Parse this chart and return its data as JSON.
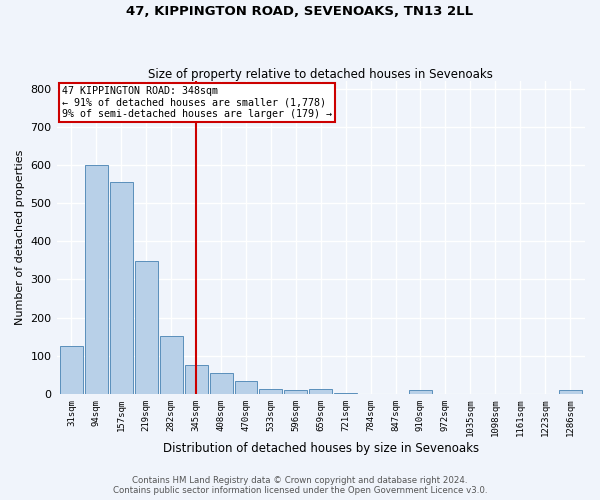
{
  "title": "47, KIPPINGTON ROAD, SEVENOAKS, TN13 2LL",
  "subtitle": "Size of property relative to detached houses in Sevenoaks",
  "xlabel": "Distribution of detached houses by size in Sevenoaks",
  "ylabel": "Number of detached properties",
  "categories": [
    "31sqm",
    "94sqm",
    "157sqm",
    "219sqm",
    "282sqm",
    "345sqm",
    "408sqm",
    "470sqm",
    "533sqm",
    "596sqm",
    "659sqm",
    "721sqm",
    "784sqm",
    "847sqm",
    "910sqm",
    "972sqm",
    "1035sqm",
    "1098sqm",
    "1161sqm",
    "1223sqm",
    "1286sqm"
  ],
  "values": [
    125,
    600,
    555,
    348,
    152,
    75,
    54,
    35,
    14,
    10,
    14,
    2,
    0,
    0,
    10,
    0,
    0,
    0,
    0,
    0,
    10
  ],
  "bar_color": "#b8d0e8",
  "bar_edge_color": "#5a8fbb",
  "property_line_label": "47 KIPPINGTON ROAD: 348sqm",
  "annotation_line1": "← 91% of detached houses are smaller (1,778)",
  "annotation_line2": "9% of semi-detached houses are larger (179) →",
  "annotation_box_color": "#cc0000",
  "annotation_bg": "#ffffff",
  "ylim": [
    0,
    820
  ],
  "yticks": [
    0,
    100,
    200,
    300,
    400,
    500,
    600,
    700,
    800
  ],
  "footer_line1": "Contains HM Land Registry data © Crown copyright and database right 2024.",
  "footer_line2": "Contains public sector information licensed under the Open Government Licence v3.0.",
  "bg_color": "#f0f4fb",
  "grid_color": "#ffffff"
}
